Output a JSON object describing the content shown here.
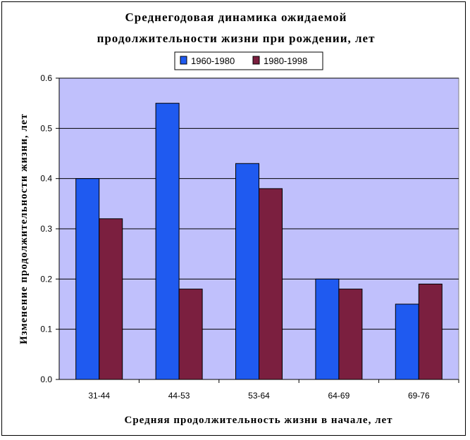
{
  "chart_data": {
    "type": "bar",
    "title_lines": [
      "Среднегодовая динамика ожидаемой",
      "продолжительности жизни при рождении, лет"
    ],
    "xlabel": "Средняя продолжительность жизни в начале, лет",
    "ylabel": "Изменение продолжительности жизни, лет",
    "categories": [
      "31-44",
      "44-53",
      "53-64",
      "64-69",
      "69-76"
    ],
    "series": [
      {
        "name": "1960-1980",
        "values": [
          0.4,
          0.55,
          0.43,
          0.2,
          0.15
        ],
        "color": "#1f5af0"
      },
      {
        "name": "1980-1998",
        "values": [
          0.32,
          0.18,
          0.38,
          0.18,
          0.19
        ],
        "color": "#7b1f3f"
      }
    ],
    "ylim": [
      0,
      0.6
    ],
    "yticks": [
      "0.0",
      "0.1",
      "0.2",
      "0.3",
      "0.4",
      "0.5",
      "0.6"
    ],
    "grid": true,
    "legend_position": "top",
    "plot_background": "#c0c0fc"
  }
}
